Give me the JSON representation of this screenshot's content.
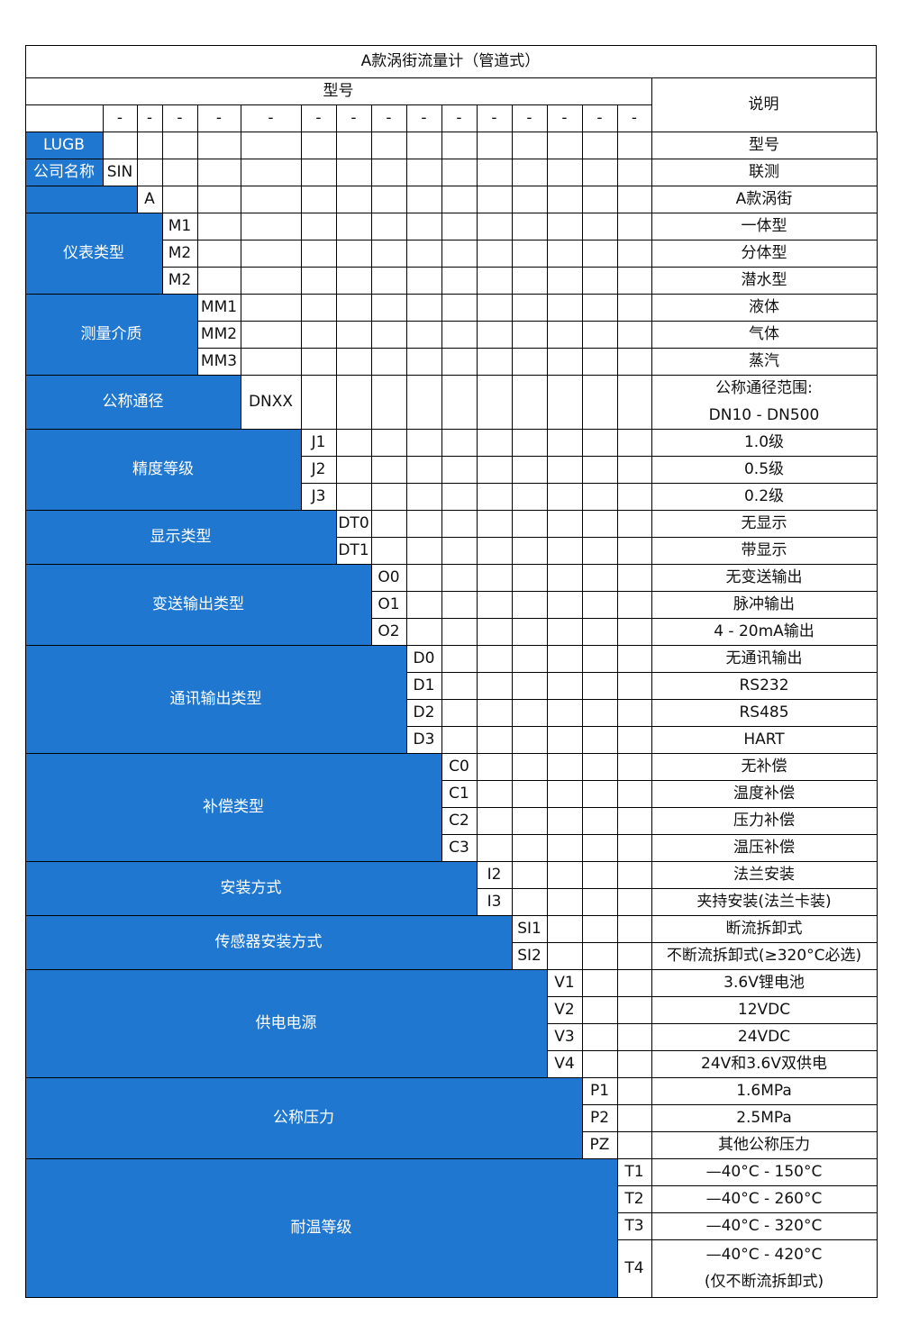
{
  "title": "A款涡街流量计（管道式）",
  "model_header": "型号",
  "desc_header": "说明",
  "separator": "-",
  "colors": {
    "accent": "#1f77d0",
    "border": "#000000"
  },
  "groups": [
    {
      "label": "LUGB",
      "rows": [
        {
          "code": "",
          "desc": "型号"
        }
      ]
    },
    {
      "label": "公司名称",
      "rows": [
        {
          "code": "SIN",
          "desc": "联测"
        }
      ]
    },
    {
      "label": "",
      "rows": [
        {
          "code": "A",
          "desc": "A款涡街"
        }
      ]
    },
    {
      "label": "仪表类型",
      "rows": [
        {
          "code": "M1",
          "desc": "一体型"
        },
        {
          "code": "M2",
          "desc": "分体型"
        },
        {
          "code": "M2",
          "desc": "潜水型"
        }
      ]
    },
    {
      "label": "测量介质",
      "rows": [
        {
          "code": "MM1",
          "desc": "液体"
        },
        {
          "code": "MM2",
          "desc": "气体"
        },
        {
          "code": "MM3",
          "desc": "蒸汽"
        }
      ]
    },
    {
      "label": "公称通径",
      "rows": [
        {
          "code": "DNXX",
          "desc": "公称通径范围:\nDN10 - DN500"
        }
      ]
    },
    {
      "label": "精度等级",
      "rows": [
        {
          "code": "J1",
          "desc": "1.0级"
        },
        {
          "code": "J2",
          "desc": "0.5级"
        },
        {
          "code": "J3",
          "desc": "0.2级"
        }
      ]
    },
    {
      "label": "显示类型",
      "rows": [
        {
          "code": "DT0",
          "desc": "无显示"
        },
        {
          "code": "DT1",
          "desc": "带显示"
        }
      ]
    },
    {
      "label": "变送输出类型",
      "rows": [
        {
          "code": "O0",
          "desc": "无变送输出"
        },
        {
          "code": "O1",
          "desc": "脉冲输出"
        },
        {
          "code": "O2",
          "desc": "4 - 20mA输出"
        }
      ]
    },
    {
      "label": "通讯输出类型",
      "rows": [
        {
          "code": "D0",
          "desc": "无通讯输出"
        },
        {
          "code": "D1",
          "desc": "RS232"
        },
        {
          "code": "D2",
          "desc": "RS485"
        },
        {
          "code": "D3",
          "desc": "HART"
        }
      ]
    },
    {
      "label": "补偿类型",
      "rows": [
        {
          "code": "C0",
          "desc": "无补偿"
        },
        {
          "code": "C1",
          "desc": "温度补偿"
        },
        {
          "code": "C2",
          "desc": "压力补偿"
        },
        {
          "code": "C3",
          "desc": "温压补偿"
        }
      ]
    },
    {
      "label": "安装方式",
      "rows": [
        {
          "code": "I2",
          "desc": "法兰安装"
        },
        {
          "code": "I3",
          "desc": "夹持安装(法兰卡装)"
        }
      ]
    },
    {
      "label": "传感器安装方式",
      "rows": [
        {
          "code": "SI1",
          "desc": "断流拆卸式"
        },
        {
          "code": "SI2",
          "desc": "不断流拆卸式(≥320°C必选)"
        }
      ]
    },
    {
      "label": "供电电源",
      "rows": [
        {
          "code": "V1",
          "desc": "3.6V锂电池"
        },
        {
          "code": "V2",
          "desc": "12VDC"
        },
        {
          "code": "V3",
          "desc": "24VDC"
        },
        {
          "code": "V4",
          "desc": "24V和3.6V双供电"
        }
      ]
    },
    {
      "label": "公称压力",
      "rows": [
        {
          "code": "P1",
          "desc": "1.6MPa"
        },
        {
          "code": "P2",
          "desc": "2.5MPa"
        },
        {
          "code": "PZ",
          "desc": "其他公称压力"
        }
      ]
    },
    {
      "label": "耐温等级",
      "rows": [
        {
          "code": "T1",
          "desc": "—40°C - 150°C"
        },
        {
          "code": "T2",
          "desc": "—40°C - 260°C"
        },
        {
          "code": "T3",
          "desc": "—40°C - 320°C"
        },
        {
          "code": "T4",
          "desc": "—40°C - 420°C\n(仅不断流拆卸式)"
        }
      ]
    }
  ]
}
